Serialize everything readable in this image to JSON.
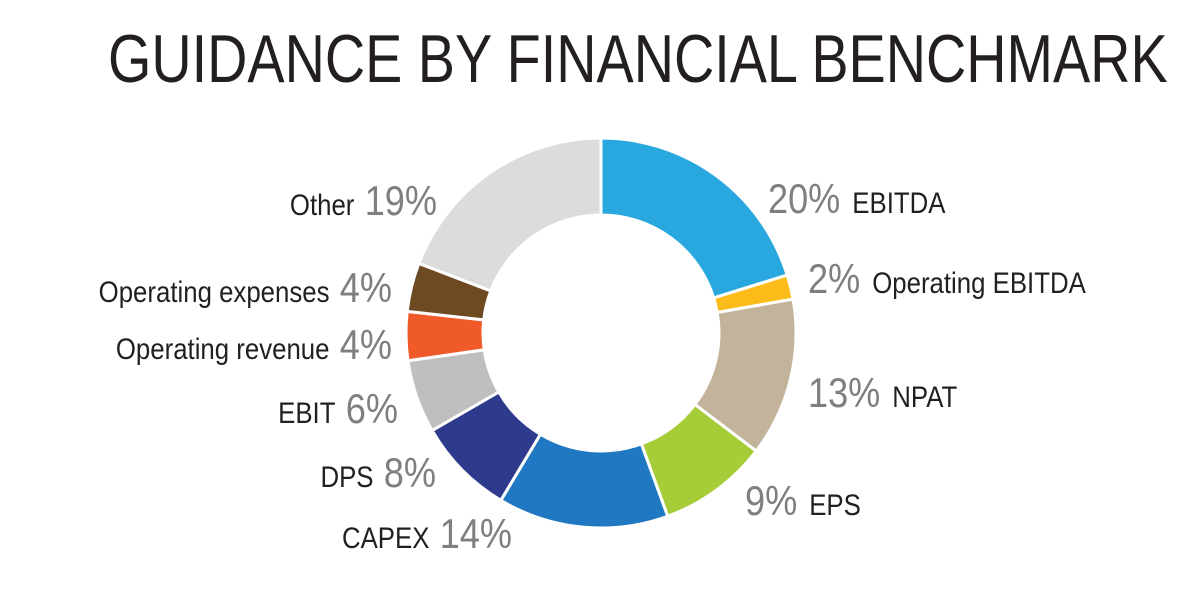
{
  "chart_data": {
    "type": "pie",
    "title": "GUIDANCE BY FINANCIAL BENCHMARK",
    "donut": true,
    "slices": [
      {
        "name": "EBITDA",
        "value": 20,
        "label": "20%",
        "color": "#29a8e0"
      },
      {
        "name": "Operating EBITDA",
        "value": 2,
        "label": "2%",
        "color": "#fbbc1a"
      },
      {
        "name": "NPAT",
        "value": 13,
        "label": "13%",
        "color": "#c2b39a"
      },
      {
        "name": "EPS",
        "value": 9,
        "label": "9%",
        "color": "#a6cd38"
      },
      {
        "name": "CAPEX",
        "value": 14,
        "label": "14%",
        "color": "#1f78c1"
      },
      {
        "name": "DPS",
        "value": 8,
        "label": "8%",
        "color": "#2e3a8c"
      },
      {
        "name": "EBIT",
        "value": 6,
        "label": "6%",
        "color": "#bfbfbf"
      },
      {
        "name": "Operating revenue",
        "value": 4,
        "label": "4%",
        "color": "#f05a28"
      },
      {
        "name": "Operating expenses",
        "value": 4,
        "label": "4%",
        "color": "#6e4a23"
      },
      {
        "name": "Other",
        "value": 19,
        "label": "19%",
        "color": "#dcdcdc"
      }
    ]
  }
}
